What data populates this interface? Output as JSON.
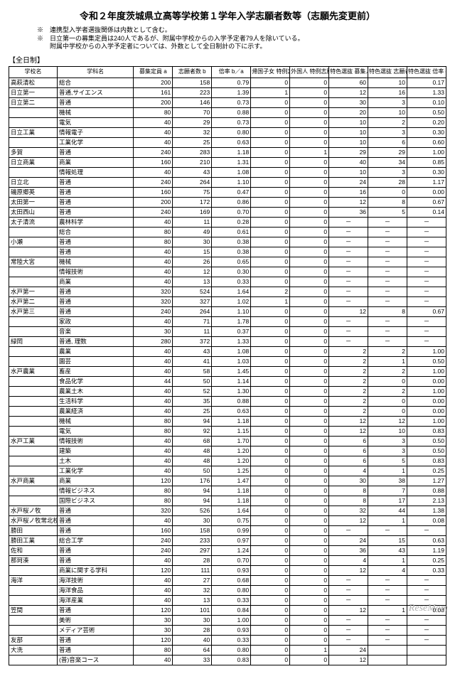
{
  "title": "令和２年度茨城県立高等学校第１学年入学志願者数等（志願先変更前）",
  "notes": [
    "※　連携型入学者選抜関係は内数として含む。",
    "※　日立第一の募集定員は240人であるが、附属中学校からの入学予定者79人を除いている。",
    "　　附属中学校からの入学予定者については、外数として全日制計の下に示す。"
  ],
  "section": "【全日制】",
  "headers": {
    "school": "学校名",
    "dept": "学科名",
    "a": "募集定員\na",
    "b": "志願者数\nb",
    "ba": "倍率\nb／a",
    "ret": "帰国子女\n特例志願者\n数(内数)",
    "for": "外国人\n特例志願者\n数(内数)",
    "c": "特色選抜\n募集人員\n(内数)\nc",
    "d": "特色選抜\n志願者数\n(内数)\nd",
    "dc": "特色選抜\n倍率\nd／c"
  },
  "rows": [
    [
      "高萩清松",
      "総合",
      "200",
      "158",
      "0.79",
      "0",
      "0",
      "60",
      "10",
      "0.17"
    ],
    [
      "日立第一",
      "普通,サイエンス",
      "161",
      "223",
      "1.39",
      "1",
      "0",
      "12",
      "16",
      "1.33"
    ],
    [
      "日立第二",
      "普通",
      "200",
      "146",
      "0.73",
      "0",
      "0",
      "30",
      "3",
      "0.10"
    ],
    [
      "",
      "機械",
      "80",
      "70",
      "0.88",
      "0",
      "0",
      "20",
      "10",
      "0.50"
    ],
    [
      "",
      "電気",
      "40",
      "29",
      "0.73",
      "0",
      "0",
      "10",
      "2",
      "0.20"
    ],
    [
      "日立工業",
      "情報電子",
      "40",
      "32",
      "0.80",
      "0",
      "0",
      "10",
      "3",
      "0.30"
    ],
    [
      "",
      "工業化学",
      "40",
      "25",
      "0.63",
      "0",
      "0",
      "10",
      "6",
      "0.60"
    ],
    [
      "多賀",
      "普通",
      "240",
      "283",
      "1.18",
      "0",
      "1",
      "29",
      "29",
      "1.00"
    ],
    [
      "日立商業",
      "商業",
      "160",
      "210",
      "1.31",
      "0",
      "0",
      "40",
      "34",
      "0.85"
    ],
    [
      "",
      "情報処理",
      "40",
      "43",
      "1.08",
      "0",
      "0",
      "10",
      "3",
      "0.30"
    ],
    [
      "日立北",
      "普通",
      "240",
      "264",
      "1.10",
      "0",
      "0",
      "24",
      "28",
      "1.17"
    ],
    [
      "磯原郷英",
      "普通",
      "160",
      "75",
      "0.47",
      "0",
      "0",
      "16",
      "0",
      "0.00"
    ],
    [
      "太田第一",
      "普通",
      "200",
      "172",
      "0.86",
      "0",
      "0",
      "12",
      "8",
      "0.67"
    ],
    [
      "太田西山",
      "普通",
      "240",
      "169",
      "0.70",
      "0",
      "0",
      "36",
      "5",
      "0.14"
    ],
    [
      "太子清流",
      "農林科学",
      "40",
      "11",
      "0.28",
      "0",
      "0",
      "－",
      "－",
      "－"
    ],
    [
      "",
      "総合",
      "80",
      "49",
      "0.61",
      "0",
      "0",
      "－",
      "－",
      "－"
    ],
    [
      "小瀬",
      "普通",
      "80",
      "30",
      "0.38",
      "0",
      "0",
      "－",
      "－",
      "－"
    ],
    [
      "",
      "普通",
      "40",
      "15",
      "0.38",
      "0",
      "0",
      "－",
      "－",
      "－"
    ],
    [
      "常陸大宮",
      "機械",
      "40",
      "26",
      "0.65",
      "0",
      "0",
      "－",
      "－",
      "－"
    ],
    [
      "",
      "情報技術",
      "40",
      "12",
      "0.30",
      "0",
      "0",
      "－",
      "－",
      "－"
    ],
    [
      "",
      "商業",
      "40",
      "13",
      "0.33",
      "0",
      "0",
      "－",
      "－",
      "－"
    ],
    [
      "水戸第一",
      "普通",
      "320",
      "524",
      "1.64",
      "2",
      "0",
      "－",
      "－",
      "－"
    ],
    [
      "水戸第二",
      "普通",
      "320",
      "327",
      "1.02",
      "1",
      "0",
      "－",
      "－",
      "－"
    ],
    [
      "水戸第三",
      "普通",
      "240",
      "264",
      "1.10",
      "0",
      "0",
      "12",
      "8",
      "0.67"
    ],
    [
      "",
      "家政",
      "40",
      "71",
      "1.78",
      "0",
      "0",
      "－",
      "－",
      "－"
    ],
    [
      "",
      "音楽",
      "30",
      "11",
      "0.37",
      "0",
      "0",
      "－",
      "－",
      "－"
    ],
    [
      "緑岡",
      "普通, 理数",
      "280",
      "372",
      "1.33",
      "0",
      "0",
      "－",
      "－",
      "－"
    ],
    [
      "",
      "農業",
      "40",
      "43",
      "1.08",
      "0",
      "0",
      "2",
      "2",
      "1.00"
    ],
    [
      "",
      "園芸",
      "40",
      "41",
      "1.03",
      "0",
      "0",
      "2",
      "1",
      "0.50"
    ],
    [
      "水戸農業",
      "畜産",
      "40",
      "58",
      "1.45",
      "0",
      "0",
      "2",
      "2",
      "1.00"
    ],
    [
      "",
      "食品化学",
      "44",
      "50",
      "1.14",
      "0",
      "0",
      "2",
      "0",
      "0.00"
    ],
    [
      "",
      "農業土木",
      "40",
      "52",
      "1.30",
      "0",
      "0",
      "2",
      "2",
      "1.00"
    ],
    [
      "",
      "生活科学",
      "40",
      "35",
      "0.88",
      "0",
      "0",
      "2",
      "0",
      "0.00"
    ],
    [
      "",
      "農業経済",
      "40",
      "25",
      "0.63",
      "0",
      "0",
      "2",
      "0",
      "0.00"
    ],
    [
      "",
      "機械",
      "80",
      "94",
      "1.18",
      "0",
      "0",
      "12",
      "12",
      "1.00"
    ],
    [
      "",
      "電気",
      "80",
      "92",
      "1.15",
      "0",
      "0",
      "12",
      "10",
      "0.83"
    ],
    [
      "水戸工業",
      "情報技術",
      "40",
      "68",
      "1.70",
      "0",
      "0",
      "6",
      "3",
      "0.50"
    ],
    [
      "",
      "建築",
      "40",
      "48",
      "1.20",
      "0",
      "0",
      "6",
      "3",
      "0.50"
    ],
    [
      "",
      "土木",
      "40",
      "48",
      "1.20",
      "0",
      "0",
      "6",
      "5",
      "0.83"
    ],
    [
      "",
      "工業化学",
      "40",
      "50",
      "1.25",
      "0",
      "0",
      "4",
      "1",
      "0.25"
    ],
    [
      "水戸商業",
      "商業",
      "120",
      "176",
      "1.47",
      "0",
      "0",
      "30",
      "38",
      "1.27"
    ],
    [
      "",
      "情報ビジネス",
      "80",
      "94",
      "1.18",
      "0",
      "0",
      "8",
      "7",
      "0.88"
    ],
    [
      "",
      "国際ビジネス",
      "80",
      "94",
      "1.18",
      "0",
      "0",
      "8",
      "17",
      "2.13"
    ],
    [
      "水戸桜ノ牧",
      "普通",
      "320",
      "526",
      "1.64",
      "0",
      "0",
      "32",
      "44",
      "1.38"
    ],
    [
      "水戸桜ノ牧常北校",
      "普通",
      "40",
      "30",
      "0.75",
      "0",
      "0",
      "12",
      "1",
      "0.08"
    ],
    [
      "勝田",
      "普通",
      "160",
      "158",
      "0.99",
      "0",
      "0",
      "－",
      "－",
      "－"
    ],
    [
      "勝田工業",
      "総合工学",
      "240",
      "233",
      "0.97",
      "0",
      "0",
      "24",
      "15",
      "0.63"
    ],
    [
      "佐和",
      "普通",
      "240",
      "297",
      "1.24",
      "0",
      "0",
      "36",
      "43",
      "1.19"
    ],
    [
      "那珂湊",
      "普通",
      "40",
      "28",
      "0.70",
      "0",
      "0",
      "4",
      "1",
      "0.25"
    ],
    [
      "",
      "商業に関する学科",
      "120",
      "111",
      "0.93",
      "0",
      "0",
      "12",
      "4",
      "0.33"
    ],
    [
      "海洋",
      "海洋技術",
      "40",
      "27",
      "0.68",
      "0",
      "0",
      "－",
      "－",
      "－"
    ],
    [
      "",
      "海洋食品",
      "40",
      "32",
      "0.80",
      "0",
      "0",
      "－",
      "－",
      "－"
    ],
    [
      "",
      "海洋産業",
      "40",
      "13",
      "0.33",
      "0",
      "0",
      "－",
      "－",
      "－"
    ],
    [
      "笠間",
      "普通",
      "120",
      "101",
      "0.84",
      "0",
      "0",
      "12",
      "1",
      "0.08"
    ],
    [
      "",
      "美術",
      "30",
      "30",
      "1.00",
      "0",
      "0",
      "－",
      "－",
      "－"
    ],
    [
      "",
      "メディア芸術",
      "30",
      "28",
      "0.93",
      "0",
      "0",
      "－",
      "－",
      "－"
    ],
    [
      "友部",
      "普通",
      "120",
      "40",
      "0.33",
      "0",
      "0",
      "－",
      "－",
      "－"
    ],
    [
      "大洗",
      "普通",
      "80",
      "64",
      "0.80",
      "0",
      "1",
      "24",
      "",
      "　"
    ],
    [
      "",
      "(普)音楽コース",
      "40",
      "33",
      "0.83",
      "0",
      "0",
      "12",
      "",
      "　"
    ]
  ],
  "watermark": "ReseMom"
}
